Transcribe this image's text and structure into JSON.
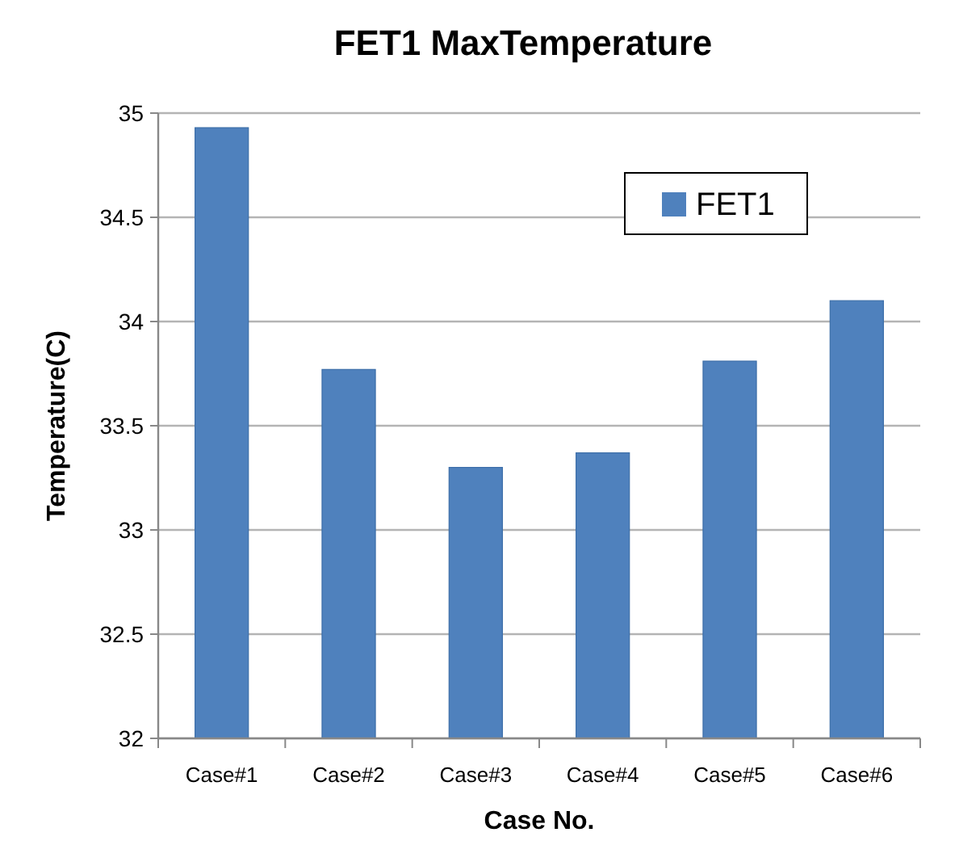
{
  "chart_data": {
    "type": "bar",
    "title": "FET1 MaxTemperature",
    "xlabel": "Case No.",
    "ylabel": "Temperature(C)",
    "categories": [
      "Case#1",
      "Case#2",
      "Case#3",
      "Case#4",
      "Case#5",
      "Case#6"
    ],
    "series": [
      {
        "name": "FET1",
        "color": "#4f81bd",
        "values": [
          34.93,
          33.77,
          33.3,
          33.37,
          33.81,
          34.1
        ]
      }
    ],
    "ylim": [
      32,
      35
    ],
    "yticks": [
      32,
      32.5,
      33,
      33.5,
      34,
      34.5,
      35
    ],
    "grid": "y",
    "legend": "top right"
  }
}
